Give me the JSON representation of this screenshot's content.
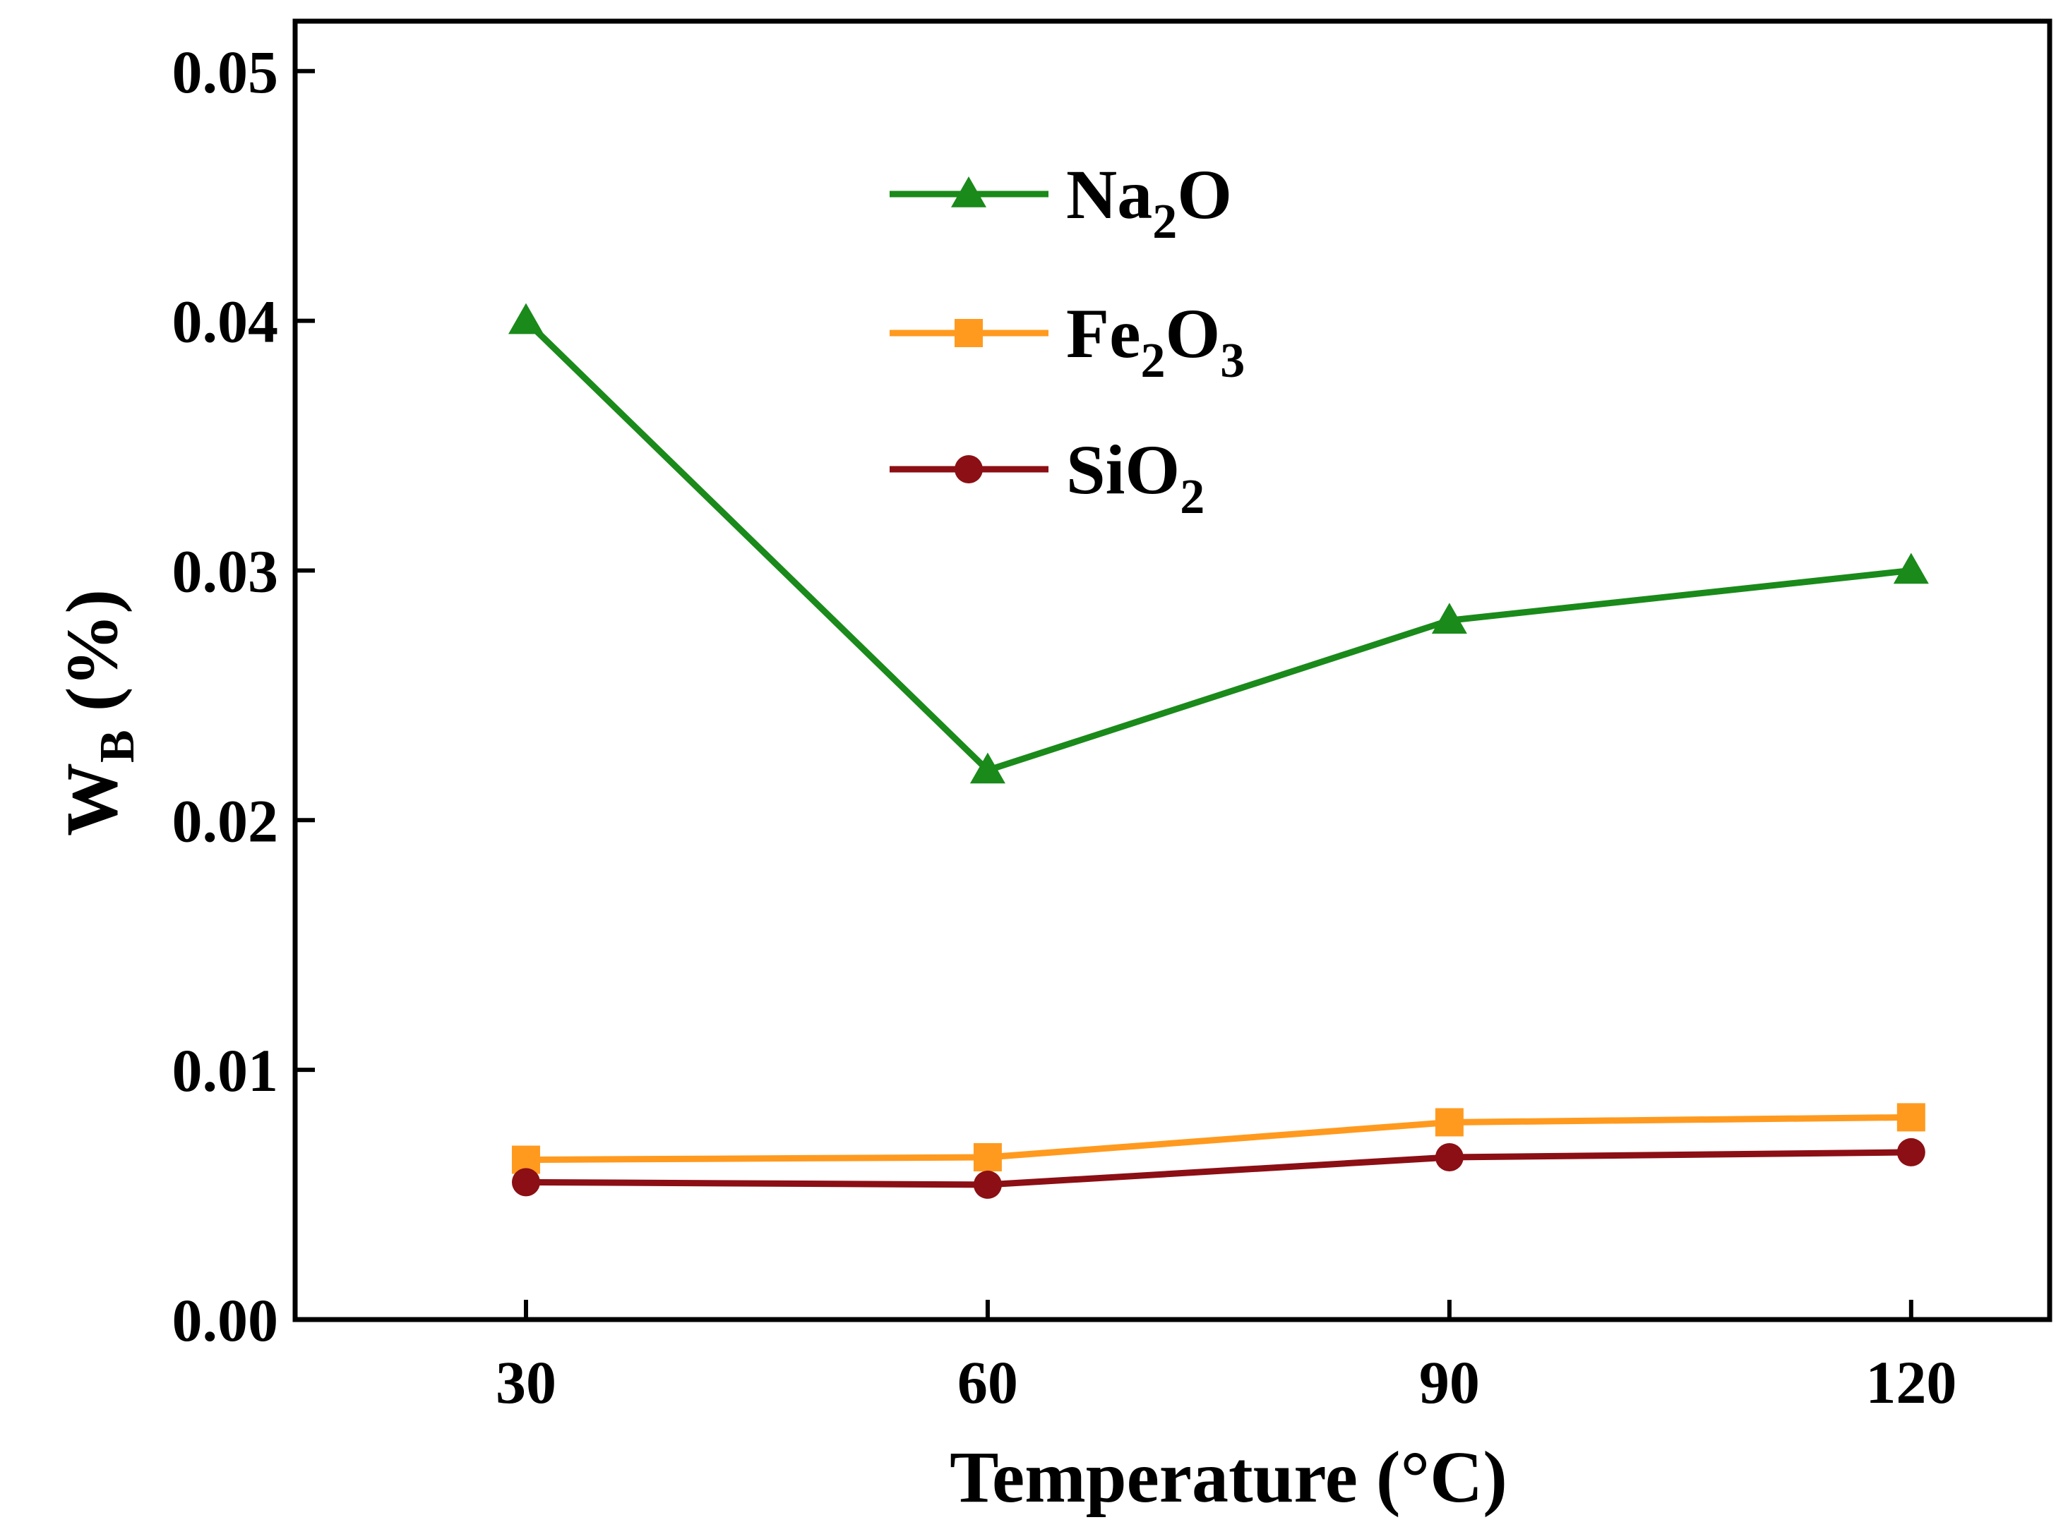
{
  "chart_data": {
    "type": "line",
    "title": "",
    "xlabel": "Temperature (°C)",
    "ylabel": {
      "main": "W",
      "sub": "B",
      "rest": " (%)"
    },
    "x": [
      30,
      60,
      90,
      120
    ],
    "x_tick_labels": [
      "30",
      "60",
      "90",
      "120"
    ],
    "xlim": [
      15,
      129
    ],
    "ylim": [
      0,
      0.052
    ],
    "y_ticks": [
      0,
      0.01,
      0.02,
      0.03,
      0.04,
      0.05
    ],
    "y_tick_labels": [
      "0.00",
      "0.01",
      "0.02",
      "0.03",
      "0.04",
      "0.05"
    ],
    "grid": false,
    "legend_position": "top-center",
    "series": [
      {
        "name": "Na2O",
        "label": {
          "main": "Na",
          "sub": "2",
          "rest": "O"
        },
        "color": "#1a8a1a",
        "marker": "triangle",
        "values": [
          0.04,
          0.022,
          0.028,
          0.03
        ]
      },
      {
        "name": "Fe2O3",
        "label": {
          "main": "Fe",
          "sub": "2",
          "rest": "O",
          "sub2": "3"
        },
        "color": "#ff9a1f",
        "marker": "square",
        "values": [
          0.0064,
          0.0065,
          0.0079,
          0.0081
        ]
      },
      {
        "name": "SiO2",
        "label": {
          "main": "SiO",
          "sub": "2",
          "rest": ""
        },
        "color": "#8b0f14",
        "marker": "circle",
        "values": [
          0.0055,
          0.0054,
          0.0065,
          0.0067
        ]
      }
    ]
  }
}
